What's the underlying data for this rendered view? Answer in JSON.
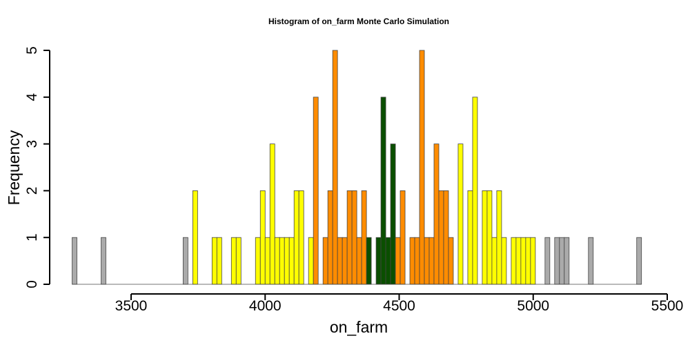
{
  "chart_data": {
    "type": "bar",
    "title": "Histogram of  on_farm  Monte Carlo Simulation",
    "xlabel": "on_farm",
    "ylabel": "Frequency",
    "xlim": [
      3280,
      5500
    ],
    "ylim": [
      0,
      5
    ],
    "x_ticks": [
      3500,
      4000,
      4500,
      5000,
      5500
    ],
    "y_ticks": [
      0,
      1,
      2,
      3,
      4,
      5
    ],
    "bin_start": 3280,
    "bin_width": 18,
    "grid": false,
    "colors": {
      "gray": "#aaaaaa",
      "yellow": "#ffff00",
      "orange": "#ff8c00",
      "green": "#0a4f00",
      "outline": "#444444"
    },
    "bins": [
      {
        "x": 3289,
        "count": 1,
        "band": "gray"
      },
      {
        "x": 3307,
        "count": 0,
        "band": "gray"
      },
      {
        "x": 3325,
        "count": 0,
        "band": "gray"
      },
      {
        "x": 3343,
        "count": 0,
        "band": "gray"
      },
      {
        "x": 3361,
        "count": 0,
        "band": "gray"
      },
      {
        "x": 3379,
        "count": 0,
        "band": "gray"
      },
      {
        "x": 3397,
        "count": 1,
        "band": "gray"
      },
      {
        "x": 3415,
        "count": 0,
        "band": "gray"
      },
      {
        "x": 3433,
        "count": 0,
        "band": "gray"
      },
      {
        "x": 3451,
        "count": 0,
        "band": "gray"
      },
      {
        "x": 3469,
        "count": 0,
        "band": "gray"
      },
      {
        "x": 3487,
        "count": 0,
        "band": "gray"
      },
      {
        "x": 3505,
        "count": 0,
        "band": "gray"
      },
      {
        "x": 3523,
        "count": 0,
        "band": "gray"
      },
      {
        "x": 3541,
        "count": 0,
        "band": "gray"
      },
      {
        "x": 3559,
        "count": 0,
        "band": "gray"
      },
      {
        "x": 3577,
        "count": 0,
        "band": "gray"
      },
      {
        "x": 3595,
        "count": 0,
        "band": "gray"
      },
      {
        "x": 3613,
        "count": 0,
        "band": "gray"
      },
      {
        "x": 3631,
        "count": 0,
        "band": "gray"
      },
      {
        "x": 3649,
        "count": 0,
        "band": "gray"
      },
      {
        "x": 3667,
        "count": 0,
        "band": "gray"
      },
      {
        "x": 3685,
        "count": 0,
        "band": "gray"
      },
      {
        "x": 3703,
        "count": 1,
        "band": "gray"
      },
      {
        "x": 3721,
        "count": 0,
        "band": "yellow"
      },
      {
        "x": 3739,
        "count": 2,
        "band": "yellow"
      },
      {
        "x": 3757,
        "count": 0,
        "band": "yellow"
      },
      {
        "x": 3775,
        "count": 0,
        "band": "yellow"
      },
      {
        "x": 3793,
        "count": 0,
        "band": "yellow"
      },
      {
        "x": 3811,
        "count": 1,
        "band": "yellow"
      },
      {
        "x": 3829,
        "count": 1,
        "band": "yellow"
      },
      {
        "x": 3847,
        "count": 0,
        "band": "yellow"
      },
      {
        "x": 3865,
        "count": 0,
        "band": "yellow"
      },
      {
        "x": 3883,
        "count": 1,
        "band": "yellow"
      },
      {
        "x": 3901,
        "count": 1,
        "band": "yellow"
      },
      {
        "x": 3919,
        "count": 0,
        "band": "yellow"
      },
      {
        "x": 3937,
        "count": 0,
        "band": "yellow"
      },
      {
        "x": 3955,
        "count": 0,
        "band": "yellow"
      },
      {
        "x": 3973,
        "count": 1,
        "band": "yellow"
      },
      {
        "x": 3991,
        "count": 2,
        "band": "yellow"
      },
      {
        "x": 4009,
        "count": 1,
        "band": "yellow"
      },
      {
        "x": 4027,
        "count": 3,
        "band": "yellow"
      },
      {
        "x": 4045,
        "count": 1,
        "band": "yellow"
      },
      {
        "x": 4063,
        "count": 1,
        "band": "yellow"
      },
      {
        "x": 4081,
        "count": 1,
        "band": "yellow"
      },
      {
        "x": 4099,
        "count": 1,
        "band": "yellow"
      },
      {
        "x": 4117,
        "count": 2,
        "band": "yellow"
      },
      {
        "x": 4135,
        "count": 2,
        "band": "yellow"
      },
      {
        "x": 4153,
        "count": 0,
        "band": "yellow"
      },
      {
        "x": 4171,
        "count": 1,
        "band": "yellow"
      },
      {
        "x": 4189,
        "count": 4,
        "band": "orange"
      },
      {
        "x": 4207,
        "count": 0,
        "band": "orange"
      },
      {
        "x": 4225,
        "count": 1,
        "band": "orange"
      },
      {
        "x": 4243,
        "count": 2,
        "band": "orange"
      },
      {
        "x": 4261,
        "count": 5,
        "band": "orange"
      },
      {
        "x": 4279,
        "count": 1,
        "band": "orange"
      },
      {
        "x": 4297,
        "count": 1,
        "band": "orange"
      },
      {
        "x": 4315,
        "count": 2,
        "band": "orange"
      },
      {
        "x": 4333,
        "count": 2,
        "band": "orange"
      },
      {
        "x": 4351,
        "count": 1,
        "band": "orange"
      },
      {
        "x": 4369,
        "count": 2,
        "band": "orange"
      },
      {
        "x": 4387,
        "count": 1,
        "band": "green"
      },
      {
        "x": 4405,
        "count": 0,
        "band": "green"
      },
      {
        "x": 4423,
        "count": 1,
        "band": "green"
      },
      {
        "x": 4441,
        "count": 4,
        "band": "green"
      },
      {
        "x": 4459,
        "count": 1,
        "band": "green"
      },
      {
        "x": 4477,
        "count": 3,
        "band": "green"
      },
      {
        "x": 4495,
        "count": 1,
        "band": "orange"
      },
      {
        "x": 4513,
        "count": 2,
        "band": "orange"
      },
      {
        "x": 4531,
        "count": 0,
        "band": "orange"
      },
      {
        "x": 4549,
        "count": 1,
        "band": "orange"
      },
      {
        "x": 4567,
        "count": 1,
        "band": "orange"
      },
      {
        "x": 4585,
        "count": 5,
        "band": "orange"
      },
      {
        "x": 4603,
        "count": 1,
        "band": "orange"
      },
      {
        "x": 4621,
        "count": 1,
        "band": "orange"
      },
      {
        "x": 4639,
        "count": 3,
        "band": "orange"
      },
      {
        "x": 4657,
        "count": 2,
        "band": "orange"
      },
      {
        "x": 4675,
        "count": 2,
        "band": "orange"
      },
      {
        "x": 4693,
        "count": 1,
        "band": "orange"
      },
      {
        "x": 4711,
        "count": 0,
        "band": "yellow"
      },
      {
        "x": 4729,
        "count": 3,
        "band": "yellow"
      },
      {
        "x": 4747,
        "count": 0,
        "band": "yellow"
      },
      {
        "x": 4765,
        "count": 2,
        "band": "yellow"
      },
      {
        "x": 4783,
        "count": 4,
        "band": "yellow"
      },
      {
        "x": 4801,
        "count": 0,
        "band": "yellow"
      },
      {
        "x": 4819,
        "count": 2,
        "band": "yellow"
      },
      {
        "x": 4837,
        "count": 2,
        "band": "yellow"
      },
      {
        "x": 4855,
        "count": 1,
        "band": "yellow"
      },
      {
        "x": 4873,
        "count": 2,
        "band": "yellow"
      },
      {
        "x": 4891,
        "count": 1,
        "band": "yellow"
      },
      {
        "x": 4909,
        "count": 0,
        "band": "yellow"
      },
      {
        "x": 4927,
        "count": 1,
        "band": "yellow"
      },
      {
        "x": 4945,
        "count": 1,
        "band": "yellow"
      },
      {
        "x": 4963,
        "count": 1,
        "band": "yellow"
      },
      {
        "x": 4981,
        "count": 1,
        "band": "yellow"
      },
      {
        "x": 4999,
        "count": 1,
        "band": "yellow"
      },
      {
        "x": 5017,
        "count": 0,
        "band": "gray"
      },
      {
        "x": 5035,
        "count": 0,
        "band": "gray"
      },
      {
        "x": 5053,
        "count": 1,
        "band": "gray"
      },
      {
        "x": 5071,
        "count": 0,
        "band": "gray"
      },
      {
        "x": 5089,
        "count": 1,
        "band": "gray"
      },
      {
        "x": 5107,
        "count": 1,
        "band": "gray"
      },
      {
        "x": 5125,
        "count": 1,
        "band": "gray"
      },
      {
        "x": 5143,
        "count": 0,
        "band": "gray"
      },
      {
        "x": 5161,
        "count": 0,
        "band": "gray"
      },
      {
        "x": 5179,
        "count": 0,
        "band": "gray"
      },
      {
        "x": 5197,
        "count": 0,
        "band": "gray"
      },
      {
        "x": 5215,
        "count": 1,
        "band": "gray"
      },
      {
        "x": 5233,
        "count": 0,
        "band": "gray"
      },
      {
        "x": 5251,
        "count": 0,
        "band": "gray"
      },
      {
        "x": 5269,
        "count": 0,
        "band": "gray"
      },
      {
        "x": 5287,
        "count": 0,
        "band": "gray"
      },
      {
        "x": 5305,
        "count": 0,
        "band": "gray"
      },
      {
        "x": 5323,
        "count": 0,
        "band": "gray"
      },
      {
        "x": 5341,
        "count": 0,
        "band": "gray"
      },
      {
        "x": 5359,
        "count": 0,
        "band": "gray"
      },
      {
        "x": 5377,
        "count": 0,
        "band": "gray"
      },
      {
        "x": 5395,
        "count": 1,
        "band": "gray"
      }
    ]
  }
}
